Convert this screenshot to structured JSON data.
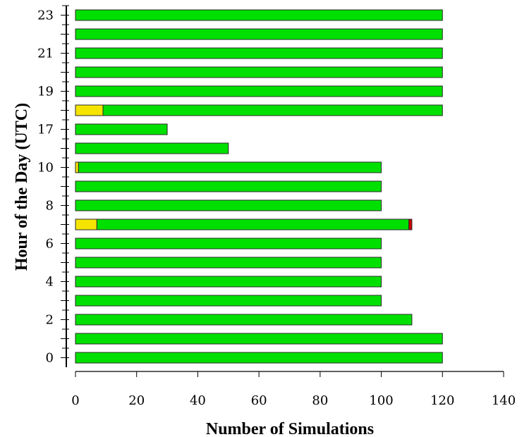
{
  "chart_data": {
    "type": "bar",
    "orientation": "horizontal",
    "stacked": true,
    "xlabel": "Number of Simulations",
    "ylabel": "Hour of the Day (UTC)",
    "xlim": [
      0,
      140
    ],
    "x_ticks": [
      0,
      20,
      40,
      60,
      80,
      100,
      120,
      140
    ],
    "categories": [
      "0",
      "1",
      "2",
      "3",
      "4",
      "5",
      "6",
      "7",
      "8",
      "9",
      "10",
      "16",
      "17",
      "18",
      "19",
      "20",
      "21",
      "22",
      "23"
    ],
    "category_tick_labels": [
      "0",
      "",
      "2",
      "",
      "4",
      "",
      "6",
      "",
      "8",
      "",
      "10",
      "",
      "17",
      "",
      "19",
      "",
      "21",
      "",
      "23"
    ],
    "series": [
      {
        "color": "#f5e400",
        "values": [
          0,
          0,
          0,
          0,
          0,
          0,
          0,
          7,
          0,
          0,
          1,
          0,
          0,
          9,
          0,
          0,
          0,
          0,
          0
        ]
      },
      {
        "color": "#00e000",
        "values": [
          120,
          120,
          110,
          100,
          100,
          100,
          100,
          102,
          100,
          100,
          99,
          50,
          30,
          111,
          120,
          120,
          120,
          120,
          120
        ]
      },
      {
        "color": "#c80000",
        "values": [
          0,
          0,
          0,
          0,
          0,
          0,
          0,
          1,
          0,
          0,
          0,
          0,
          0,
          0,
          0,
          0,
          0,
          0,
          0
        ]
      }
    ],
    "grid": false,
    "legend": "none"
  }
}
